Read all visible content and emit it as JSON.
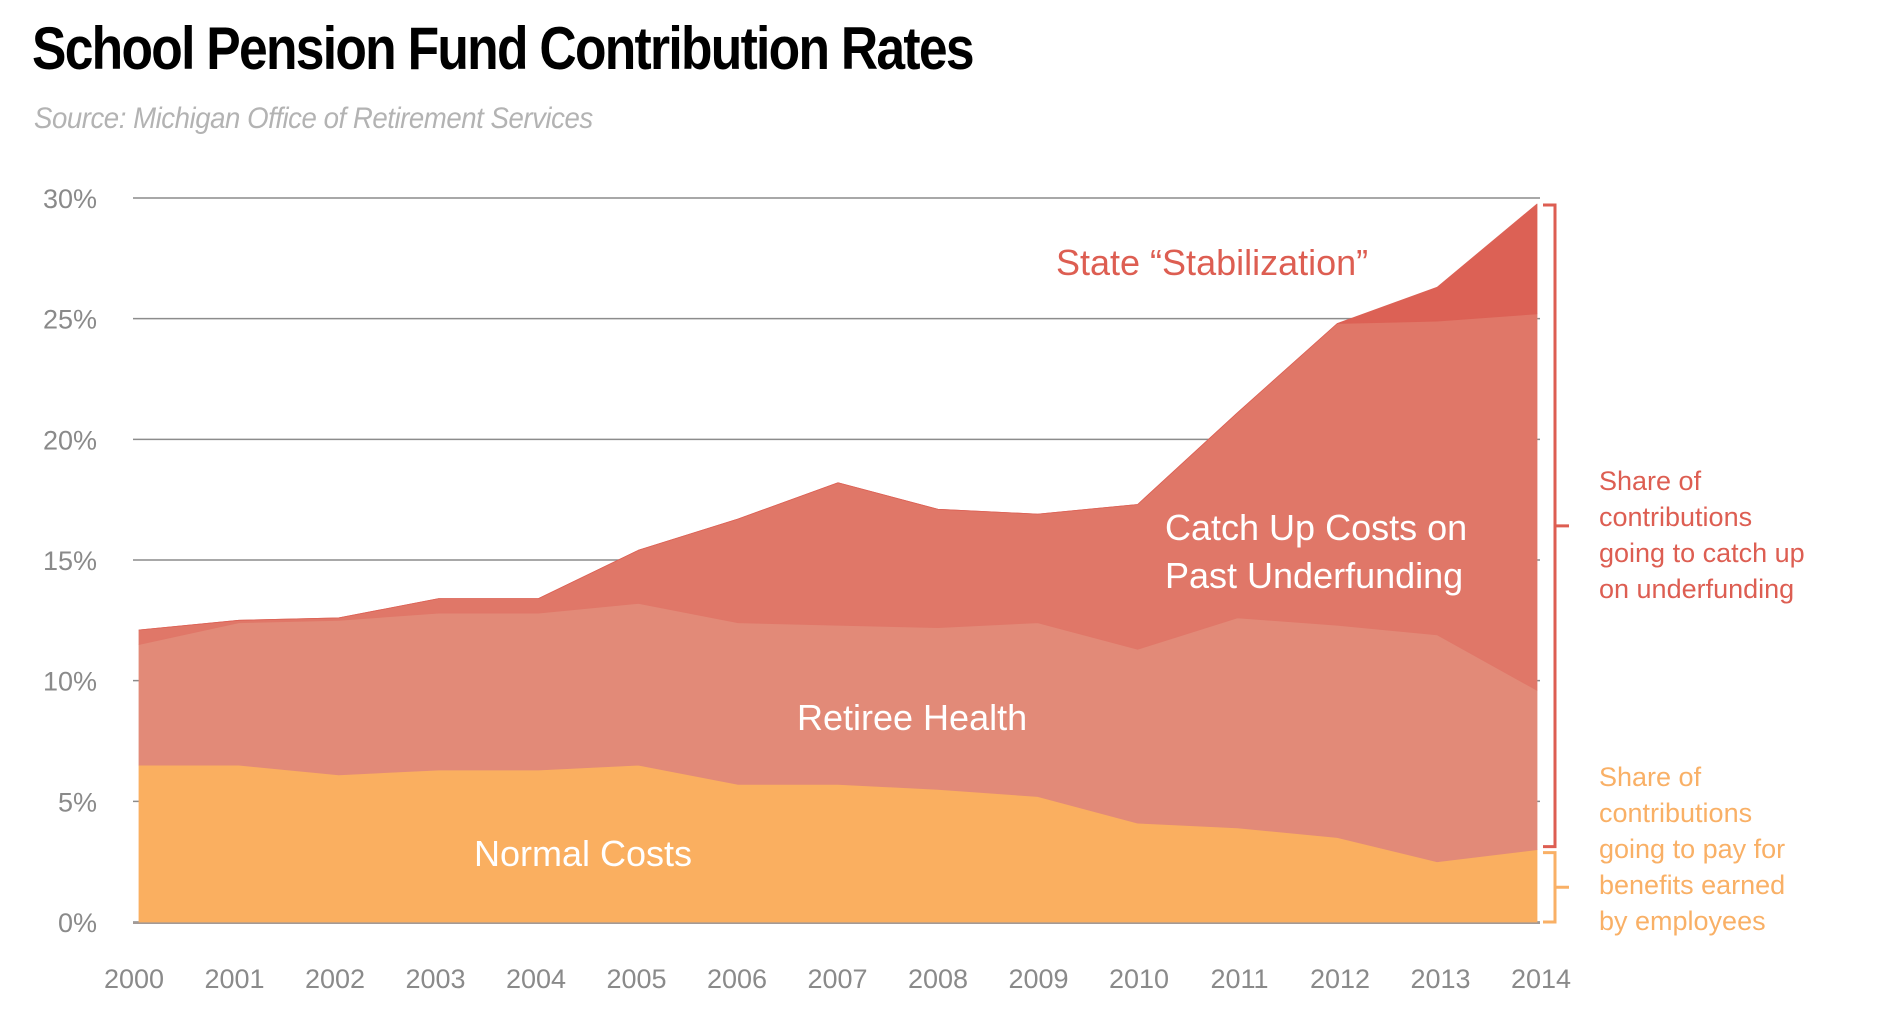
{
  "header": {
    "title": "School Pension Fund Contribution Rates",
    "subtitle": "Source: Michigan Office of Retirement Services"
  },
  "colors": {
    "normal_costs": "#FAAF60",
    "retiree_health": "#E28A78",
    "catch_up": "#E07768",
    "stabilization": "#DC6155",
    "annotation_red": "#DD5E52",
    "annotation_orange": "#F9B066",
    "gridline": "#8c8c8c",
    "tick_text": "#8a8a8a"
  },
  "chart_data": {
    "type": "area",
    "stacked": true,
    "title": "School Pension Fund Contribution Rates",
    "subtitle": "Source: Michigan Office of Retirement Services",
    "xlabel": "",
    "ylabel": "",
    "x": [
      2000,
      2001,
      2002,
      2003,
      2004,
      2005,
      2006,
      2007,
      2008,
      2009,
      2010,
      2011,
      2012,
      2013,
      2014
    ],
    "x_tick_labels": [
      "2000",
      "2001",
      "2002",
      "2003",
      "2004",
      "2005",
      "2006",
      "2007",
      "2008",
      "2009",
      "2010",
      "2011",
      "2012",
      "2013",
      "2014"
    ],
    "ylim": [
      0,
      30
    ],
    "y_ticks": [
      0,
      5,
      10,
      15,
      20,
      25,
      30
    ],
    "y_tick_labels": [
      "0%",
      "5%",
      "10%",
      "15%",
      "20%",
      "25%",
      "30%"
    ],
    "grid": true,
    "unit": "percent of payroll",
    "series": [
      {
        "name": "Normal Costs",
        "label": "Normal Costs",
        "color_key": "normal_costs",
        "values": [
          6.5,
          6.5,
          6.1,
          6.3,
          6.3,
          6.5,
          5.7,
          5.7,
          5.5,
          5.2,
          4.1,
          3.9,
          3.5,
          2.5,
          3.0
        ]
      },
      {
        "name": "Retiree Health",
        "label": "Retiree Health",
        "color_key": "retiree_health",
        "values": [
          5.0,
          5.9,
          6.4,
          6.5,
          6.5,
          6.7,
          6.7,
          6.6,
          6.7,
          7.2,
          7.2,
          8.7,
          8.8,
          9.4,
          6.6
        ]
      },
      {
        "name": "Catch Up Costs on Past Underfunding",
        "label_lines": [
          "Catch Up Costs on",
          "Past Underfunding"
        ],
        "color_key": "catch_up",
        "values": [
          0.6,
          0.1,
          0.1,
          0.6,
          0.6,
          2.2,
          4.3,
          5.9,
          4.9,
          4.5,
          6.0,
          8.5,
          12.5,
          13.0,
          15.6
        ]
      },
      {
        "name": "State “Stabilization”",
        "label": "State “Stabilization”",
        "color_key": "stabilization",
        "values": [
          0,
          0,
          0,
          0,
          0,
          0,
          0,
          0,
          0,
          0,
          0,
          0,
          0,
          1.4,
          4.55
        ]
      }
    ],
    "annotations": [
      {
        "name": "underfunding-bracket",
        "text_lines": [
          "Share of",
          "contributions",
          "going to catch up",
          "on underfunding"
        ],
        "color_key": "annotation_red",
        "range": [
          3.0,
          29.75
        ]
      },
      {
        "name": "normal-cost-bracket",
        "text_lines": [
          "Share of",
          "contributions",
          "going to pay for",
          "benefits earned",
          "by employees"
        ],
        "color_key": "annotation_orange",
        "range": [
          0,
          3.0
        ]
      }
    ]
  }
}
